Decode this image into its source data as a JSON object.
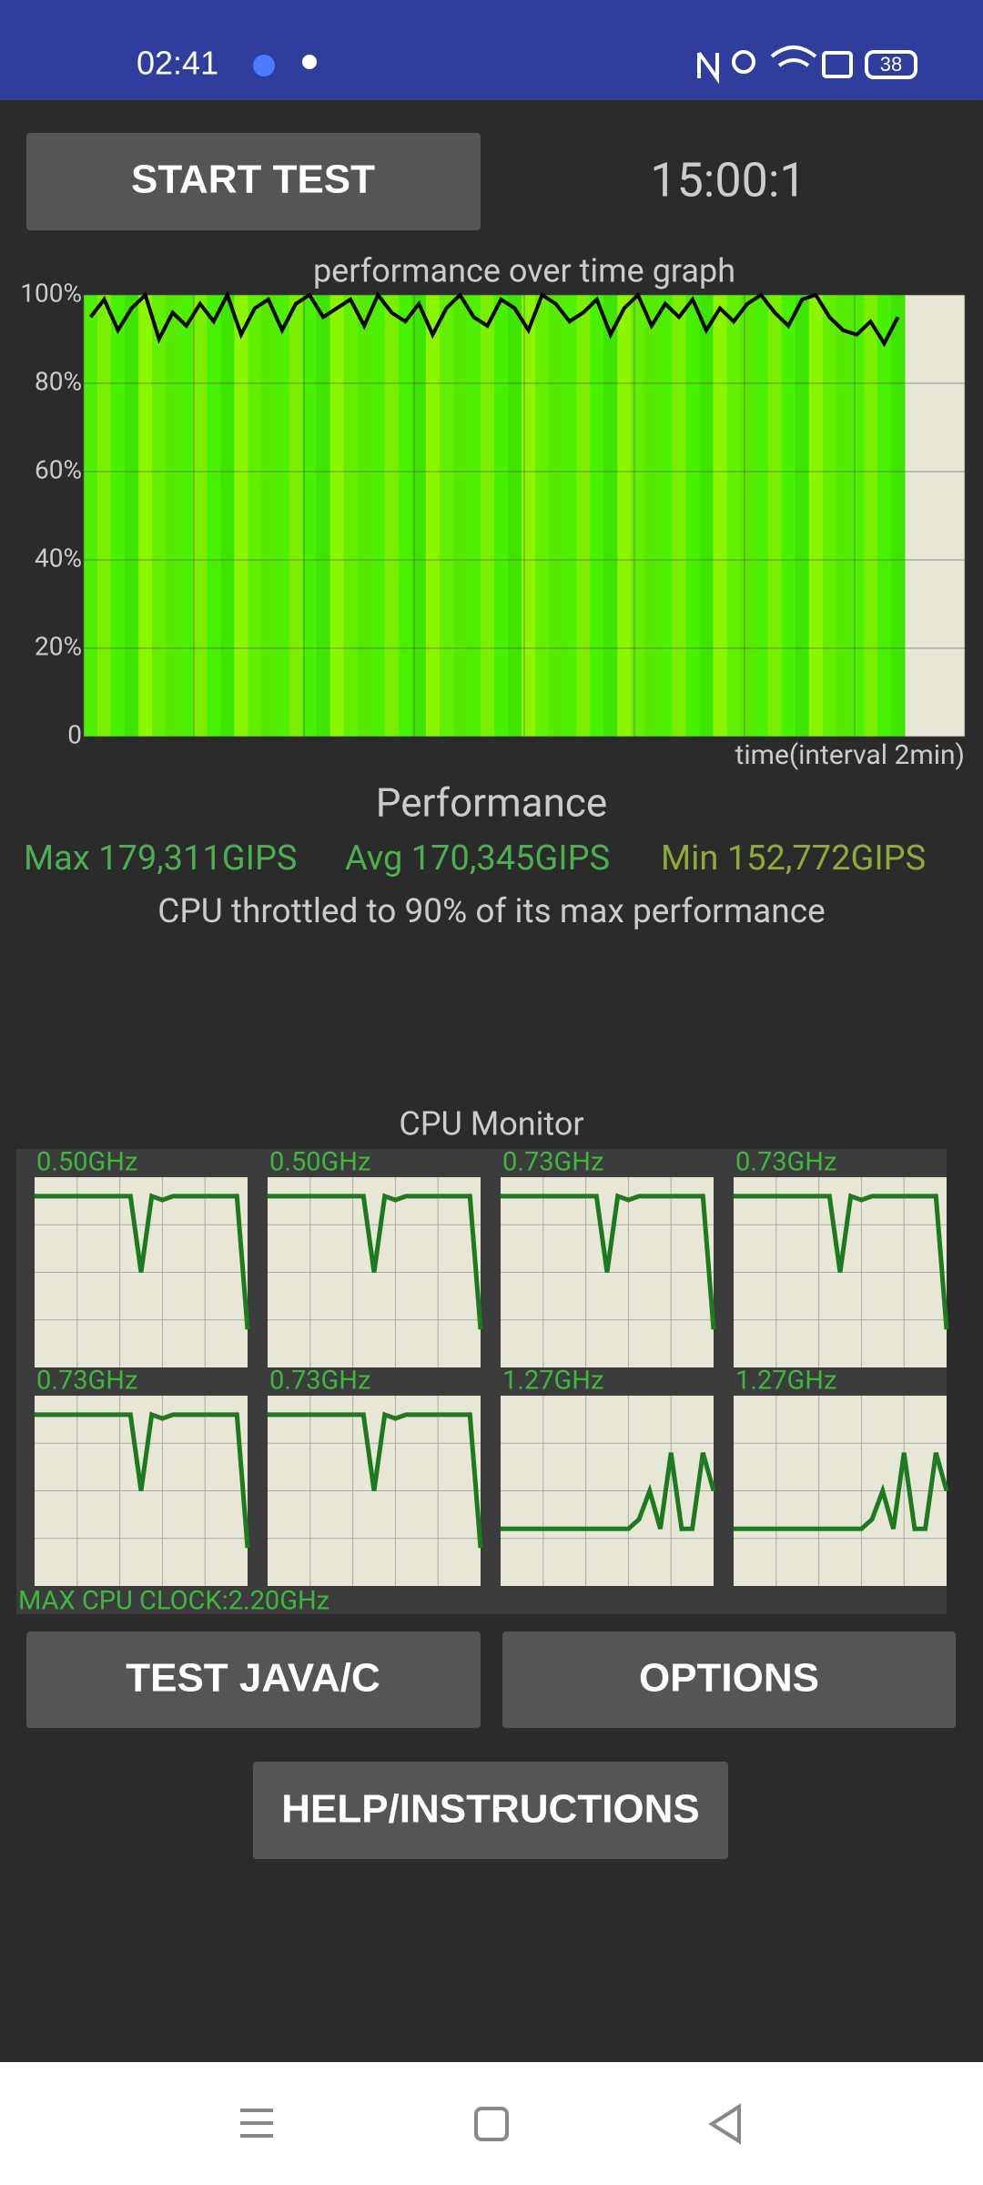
{
  "status_bar": {
    "time": "02:41",
    "battery": "38"
  },
  "controls": {
    "start_button": "START TEST",
    "timer": "15:00:1"
  },
  "performance_graph": {
    "title": "performance over time graph",
    "x_label": "time(interval 2min)",
    "ylim": [
      0,
      100
    ],
    "yticks": [
      0,
      {
        "value": 20,
        "label": "20%"
      },
      {
        "value": 40,
        "label": "40%"
      },
      {
        "value": 60,
        "label": "60%"
      },
      {
        "value": 80,
        "label": "80%"
      },
      {
        "value": 100,
        "label": "100%"
      }
    ],
    "values": [
      95,
      99,
      92,
      97,
      100,
      90,
      96,
      93,
      98,
      94,
      100,
      91,
      97,
      99,
      92,
      98,
      100,
      95,
      97,
      99,
      93,
      100,
      96,
      94,
      98,
      91,
      97,
      100,
      95,
      93,
      99,
      97,
      92,
      100,
      98,
      94,
      96,
      99,
      91,
      97,
      100,
      93,
      98,
      95,
      99,
      92,
      97,
      94,
      98,
      100,
      96,
      93,
      99,
      100,
      95,
      92,
      91,
      94,
      89,
      95
    ]
  },
  "performance": {
    "heading": "Performance",
    "max": "Max 179,311GIPS",
    "avg": "Avg 170,345GIPS",
    "min": "Min 152,772GIPS",
    "note": "CPU throttled to 90% of its max performance"
  },
  "cpu_monitor": {
    "title": "CPU Monitor",
    "ylim": [
      0,
      100
    ],
    "cores": [
      {
        "label": "0.50GHz",
        "values": [
          90,
          90,
          90,
          90,
          90,
          90,
          90,
          90,
          90,
          90,
          50,
          90,
          88,
          90,
          90,
          90,
          90,
          90,
          90,
          90,
          20
        ]
      },
      {
        "label": "0.50GHz",
        "values": [
          90,
          90,
          90,
          90,
          90,
          90,
          90,
          90,
          90,
          90,
          50,
          90,
          88,
          90,
          90,
          90,
          90,
          90,
          90,
          90,
          20
        ]
      },
      {
        "label": "0.73GHz",
        "values": [
          90,
          90,
          90,
          90,
          90,
          90,
          90,
          90,
          90,
          90,
          50,
          90,
          88,
          90,
          90,
          90,
          90,
          90,
          90,
          90,
          20
        ]
      },
      {
        "label": "0.73GHz",
        "values": [
          90,
          90,
          90,
          90,
          90,
          90,
          90,
          90,
          90,
          90,
          50,
          90,
          88,
          90,
          90,
          90,
          90,
          90,
          90,
          90,
          20
        ]
      },
      {
        "label": "0.73GHz",
        "values": [
          90,
          90,
          90,
          90,
          90,
          90,
          90,
          90,
          90,
          90,
          50,
          90,
          88,
          90,
          90,
          90,
          90,
          90,
          90,
          90,
          20
        ]
      },
      {
        "label": "0.73GHz",
        "values": [
          90,
          90,
          90,
          90,
          90,
          90,
          90,
          90,
          90,
          90,
          50,
          90,
          88,
          90,
          90,
          90,
          90,
          90,
          90,
          90,
          20
        ]
      },
      {
        "label": "1.27GHz",
        "values": [
          30,
          30,
          30,
          30,
          30,
          30,
          30,
          30,
          30,
          30,
          30,
          30,
          30,
          35,
          50,
          30,
          70,
          30,
          30,
          70,
          50
        ]
      },
      {
        "label": "1.27GHz",
        "values": [
          30,
          30,
          30,
          30,
          30,
          30,
          30,
          30,
          30,
          30,
          30,
          30,
          30,
          35,
          50,
          30,
          70,
          30,
          30,
          70,
          50
        ]
      }
    ],
    "max_clock": "MAX CPU CLOCK:2.20GHz"
  },
  "buttons": {
    "test": "TEST JAVA/C",
    "options": "OPTIONS",
    "help": "HELP/INSTRUCTIONS"
  }
}
